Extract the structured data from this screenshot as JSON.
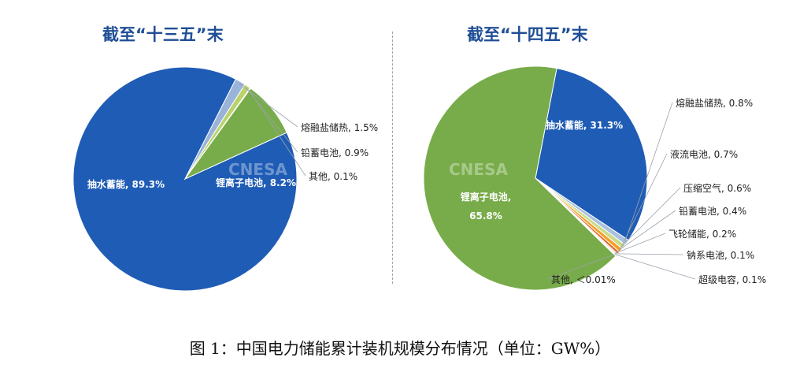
{
  "chart_data": [
    {
      "type": "pie",
      "title": "截至“十三五”末",
      "slices": [
        {
          "label": "抽水蓄能",
          "value": 89.3,
          "display": "抽水蓄能, 89.3%",
          "color": "#1f5cb5",
          "label_inside": true
        },
        {
          "label": "熔融盐储热",
          "value": 1.5,
          "display": "熔融盐储热, 1.5%",
          "color": "#9ab3d8",
          "label_inside": false
        },
        {
          "label": "铅蓄电池",
          "value": 0.9,
          "display": "铅蓄电池, 0.9%",
          "color": "#b9d36b",
          "label_inside": false
        },
        {
          "label": "其他",
          "value": 0.1,
          "display": "其他, 0.1%",
          "color": "#d9e2ef",
          "label_inside": false
        },
        {
          "label": "锂离子电池",
          "value": 8.2,
          "display": "锂离子电池, 8.2%",
          "color": "#78ac4a",
          "label_inside": true
        }
      ]
    },
    {
      "type": "pie",
      "title": "截至“十四五”末",
      "slices": [
        {
          "label": "抽水蓄能",
          "value": 31.3,
          "display": "抽水蓄能, 31.3%",
          "color": "#1f5cb5",
          "label_inside": true
        },
        {
          "label": "熔融盐储热",
          "value": 0.8,
          "display": "熔融盐储热, 0.8%",
          "color": "#a9c0e0",
          "label_inside": false
        },
        {
          "label": "液流电池",
          "value": 0.7,
          "display": "液流电池, 0.7%",
          "color": "#c9dc8a",
          "label_inside": false
        },
        {
          "label": "压缩空气",
          "value": 0.6,
          "display": "压缩空气, 0.6%",
          "color": "#f2a12a",
          "label_inside": false
        },
        {
          "label": "铅蓄电池",
          "value": 0.4,
          "display": "铅蓄电池, 0.4%",
          "color": "#e8641e",
          "label_inside": false
        },
        {
          "label": "飞轮储能",
          "value": 0.2,
          "display": "飞轮储能, 0.2%",
          "color": "#c8c8c8",
          "label_inside": false
        },
        {
          "label": "钠系电池",
          "value": 0.1,
          "display": "钠系电池, 0.1%",
          "color": "#5b86c6",
          "label_inside": false
        },
        {
          "label": "超级电容",
          "value": 0.1,
          "display": "超级电容, 0.1%",
          "color": "#9fc270",
          "label_inside": false
        },
        {
          "label": "其他",
          "value": 0.01,
          "display": "其他, ＜0.01%",
          "color": "#e6e6e6",
          "label_inside": false
        },
        {
          "label": "锂离子电池",
          "value": 65.8,
          "display": "锂离子电池,\n65.8%",
          "color": "#78ac4a",
          "label_inside": true
        }
      ]
    }
  ],
  "watermark": "CNESA",
  "caption": "图 1：中国电力储能累计装机规模分布情况（单位：GW%）"
}
